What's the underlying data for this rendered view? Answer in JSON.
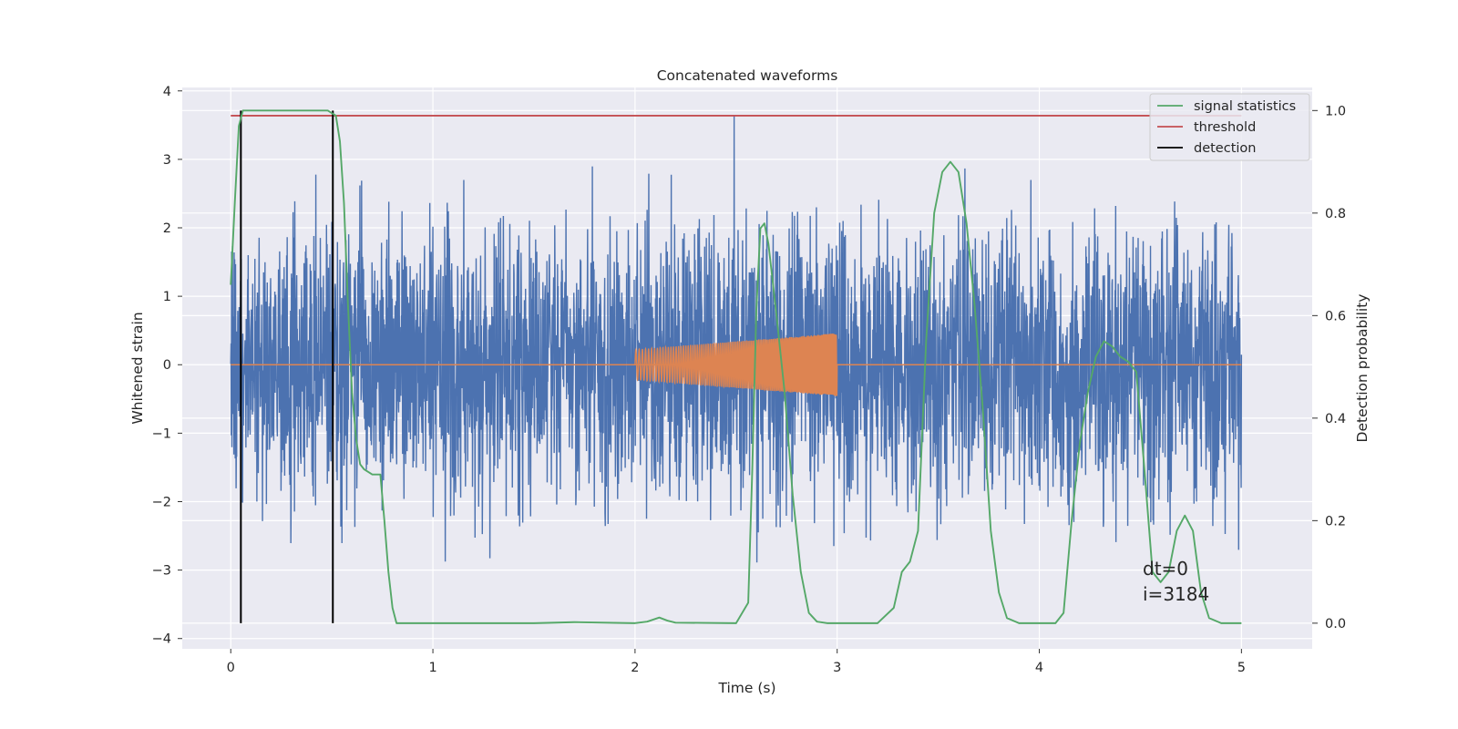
{
  "chart_data": {
    "type": "line",
    "title": "Concatenated waveforms",
    "xlabel": "Time (s)",
    "ylabel": "Whitened strain",
    "ylabel_right": "Detection probability",
    "xlim": [
      -0.24,
      5.35
    ],
    "ylim": [
      -4.15,
      4.05
    ],
    "ylim_right": [
      -0.05,
      1.045
    ],
    "xticks": [
      0,
      1,
      2,
      3,
      4,
      5
    ],
    "yticks": [
      -4,
      -3,
      -2,
      -1,
      0,
      1,
      2,
      3,
      4
    ],
    "yticks_right": [
      0.0,
      0.2,
      0.4,
      0.6,
      0.8,
      1.0
    ],
    "xtick_labels": [
      "0",
      "1",
      "2",
      "3",
      "4",
      "5"
    ],
    "ytick_labels": [
      "−4",
      "−3",
      "−2",
      "−1",
      "0",
      "1",
      "2",
      "3",
      "4"
    ],
    "ytick_labels_right": [
      "0.0",
      "0.2",
      "0.4",
      "0.6",
      "0.8",
      "1.0"
    ],
    "grid": true,
    "legend_position": "top-right",
    "series": [
      {
        "key": "strain",
        "color": "#4c72b0",
        "axis": "left",
        "noise": {
          "x_start": 0.0,
          "x_end": 5.0,
          "typical_amplitude": 1.0,
          "peak_amplitude": 3.65,
          "peak_time": 2.49
        }
      },
      {
        "key": "injection",
        "color": "#dd8452",
        "axis": "left",
        "chirp": {
          "x_start": 2.0,
          "x_end": 3.0,
          "amplitude_start": 0.22,
          "amplitude_end": 0.46
        }
      },
      {
        "name": "signal statistics",
        "color": "#55a868",
        "axis": "right",
        "x": [
          0.0,
          0.02,
          0.04,
          0.06,
          0.1,
          0.2,
          0.3,
          0.4,
          0.48,
          0.52,
          0.54,
          0.56,
          0.58,
          0.6,
          0.62,
          0.64,
          0.66,
          0.7,
          0.74,
          0.76,
          0.78,
          0.8,
          0.82,
          0.86,
          1.0,
          1.5,
          1.7,
          2.0,
          2.06,
          2.12,
          2.16,
          2.2,
          2.5,
          2.56,
          2.58,
          2.6,
          2.62,
          2.64,
          2.66,
          2.7,
          2.74,
          2.78,
          2.82,
          2.86,
          2.9,
          2.95,
          3.2,
          3.28,
          3.32,
          3.36,
          3.4,
          3.44,
          3.48,
          3.52,
          3.56,
          3.6,
          3.64,
          3.68,
          3.72,
          3.76,
          3.8,
          3.84,
          3.9,
          4.0,
          4.08,
          4.12,
          4.16,
          4.2,
          4.24,
          4.28,
          4.32,
          4.36,
          4.4,
          4.44,
          4.48,
          4.52,
          4.56,
          4.6,
          4.64,
          4.68,
          4.72,
          4.76,
          4.8,
          4.84,
          4.9,
          5.0
        ],
        "y": [
          0.66,
          0.82,
          0.97,
          1.0,
          1.0,
          1.0,
          1.0,
          1.0,
          1.0,
          0.99,
          0.94,
          0.82,
          0.62,
          0.45,
          0.36,
          0.31,
          0.3,
          0.29,
          0.29,
          0.2,
          0.1,
          0.03,
          0.0,
          0.0,
          0.0,
          0.0,
          0.002,
          0.0,
          0.003,
          0.011,
          0.005,
          0.001,
          0.0,
          0.04,
          0.3,
          0.61,
          0.77,
          0.78,
          0.74,
          0.6,
          0.45,
          0.25,
          0.1,
          0.02,
          0.003,
          0.0,
          0.0,
          0.03,
          0.1,
          0.12,
          0.18,
          0.55,
          0.8,
          0.88,
          0.9,
          0.88,
          0.78,
          0.62,
          0.42,
          0.18,
          0.06,
          0.01,
          0.0,
          0.0,
          0.0,
          0.02,
          0.2,
          0.35,
          0.45,
          0.52,
          0.55,
          0.54,
          0.52,
          0.51,
          0.49,
          0.3,
          0.1,
          0.08,
          0.1,
          0.18,
          0.21,
          0.18,
          0.06,
          0.01,
          0.0,
          0.0
        ]
      },
      {
        "name": "threshold",
        "color": "#c44e52",
        "axis": "right",
        "x": [
          0.0,
          5.0
        ],
        "y": [
          0.99,
          0.99
        ]
      },
      {
        "name": "detection",
        "color": "#000000",
        "axis": "right",
        "vlines": [
          0.05,
          0.505
        ],
        "ymin": 0.0,
        "ymax": 1.0
      }
    ],
    "annotations": [
      "dt=0",
      "i=3184"
    ]
  }
}
